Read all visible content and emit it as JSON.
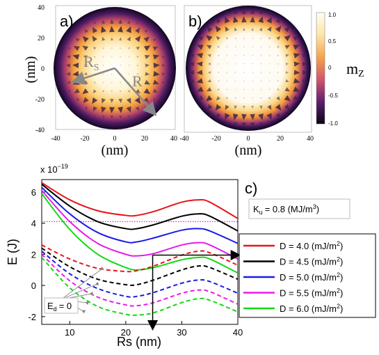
{
  "panel_a": {
    "label": "a)",
    "ylabel": "(nm)",
    "xlabel": "(nm)",
    "yticks": [
      "40",
      "20",
      "0",
      "-20",
      "-40"
    ],
    "xticks": [
      "-40",
      "-20",
      "0",
      "20",
      "40"
    ],
    "rs_label": "R",
    "rs_sub": "S",
    "r_label": "R"
  },
  "panel_b": {
    "label": "b)",
    "xlabel": "(nm)",
    "xticks": [
      "-40",
      "-20",
      "0",
      "20",
      "40"
    ],
    "colorbar_label": "m",
    "colorbar_sub": "Z",
    "colorbar_ticks": [
      "1.0",
      "0.5",
      "0",
      "-0.5",
      "-1.0"
    ]
  },
  "panel_c": {
    "label": "c)",
    "ku_label": "K",
    "ku_sub": "u",
    "ku_value": "= 0.8 (MJ/m",
    "ku_sup": "3",
    "ku_close": ")",
    "ed_label": "E",
    "ed_sub": "d",
    "ed_value": "= 0",
    "scale_prefix": "x 10",
    "scale_exp": "−19",
    "legend": [
      {
        "prefix": "D = 4.0  (mJ/m",
        "sup": "2",
        "suffix": ")"
      },
      {
        "prefix": "D = 4.5  (mJ/m",
        "sup": "2",
        "suffix": ")"
      },
      {
        "prefix": "D = 5.0  (mJ/m",
        "sup": "2",
        "suffix": ")"
      },
      {
        "prefix": "D = 5.5  (mJ/m",
        "sup": "2",
        "suffix": ")"
      },
      {
        "prefix": "D = 6.0  (mJ/m",
        "sup": "2",
        "suffix": ")"
      }
    ]
  },
  "colors": {
    "series": [
      "#e8141a",
      "#000000",
      "#1a1ae8",
      "#e81ae8",
      "#14d814"
    ],
    "ku_line": "#e81ae8",
    "arrow_gray": "#888888"
  },
  "chart_data": {
    "type": "line",
    "xlabel": "Rs (nm)",
    "ylabel": "E (J)",
    "xlim": [
      5,
      40
    ],
    "ylim": [
      -2.5,
      6.8
    ],
    "xticks": [
      10,
      20,
      30,
      40
    ],
    "yticks": [
      -2,
      0,
      2,
      4,
      6
    ],
    "ku_line_y": 4.1,
    "x": [
      5,
      10,
      15,
      20,
      22,
      25,
      30,
      33,
      35,
      40
    ],
    "series": [
      {
        "name": "D = 4.0  (mJ/m2)",
        "style": "solid",
        "values": [
          6.6,
          5.5,
          4.8,
          4.5,
          4.5,
          4.75,
          5.35,
          5.5,
          5.35,
          4.3
        ]
      },
      {
        "name": "D = 4.5  (mJ/m2)",
        "style": "solid",
        "values": [
          6.5,
          5.1,
          4.1,
          3.65,
          3.65,
          3.9,
          4.45,
          4.6,
          4.45,
          3.5
        ]
      },
      {
        "name": "D = 5.0  (mJ/m2)",
        "style": "solid",
        "values": [
          6.3,
          4.6,
          3.4,
          2.8,
          2.8,
          3.05,
          3.55,
          3.65,
          3.5,
          2.7
        ]
      },
      {
        "name": "D = 5.5  (mJ/m2)",
        "style": "solid",
        "values": [
          6.1,
          4.1,
          2.7,
          2.0,
          1.9,
          2.05,
          2.6,
          2.75,
          2.6,
          1.7
        ]
      },
      {
        "name": "D = 6.0  (mJ/m2)",
        "style": "solid",
        "values": [
          5.9,
          3.6,
          2.0,
          1.15,
          1.0,
          1.15,
          1.65,
          1.8,
          1.7,
          0.8
        ]
      },
      {
        "name": "D = 4.0  (mJ/m2)",
        "style": "dashed",
        "values": [
          2.6,
          1.7,
          1.1,
          0.9,
          0.95,
          1.25,
          1.95,
          2.2,
          2.1,
          1.3
        ]
      },
      {
        "name": "D = 4.5  (mJ/m2)",
        "style": "dashed",
        "values": [
          2.4,
          1.2,
          0.4,
          0.05,
          0.05,
          0.35,
          1.0,
          1.25,
          1.15,
          0.4
        ]
      },
      {
        "name": "D = 5.0  (mJ/m2)",
        "style": "dashed",
        "values": [
          2.2,
          0.75,
          -0.2,
          -0.7,
          -0.7,
          -0.45,
          0.15,
          0.35,
          0.25,
          -0.5
        ]
      },
      {
        "name": "D = 5.5  (mJ/m2)",
        "style": "dashed",
        "values": [
          2.0,
          0.3,
          -0.75,
          -1.25,
          -1.3,
          -1.1,
          -0.5,
          -0.3,
          -0.4,
          -1.2
        ]
      },
      {
        "name": "D = 6.0  (mJ/m2)",
        "style": "dashed",
        "values": [
          1.8,
          -0.15,
          -1.35,
          -1.85,
          -1.9,
          -1.75,
          -1.1,
          -0.85,
          -0.95,
          -1.7
        ]
      }
    ]
  }
}
